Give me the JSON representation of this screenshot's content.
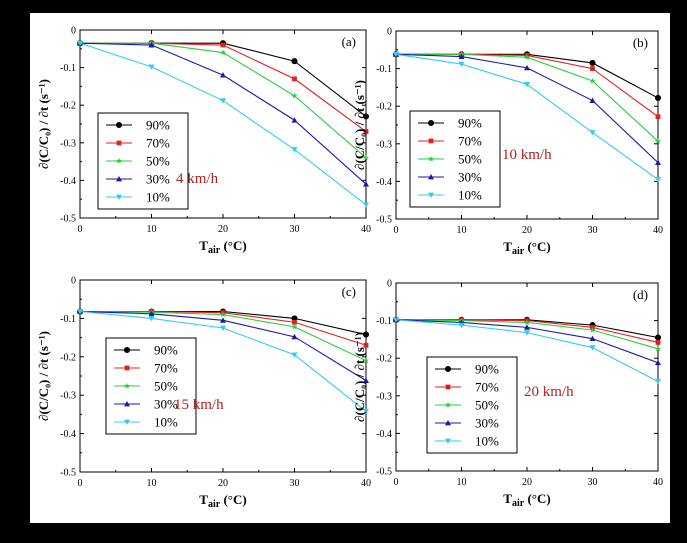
{
  "chart_data": [
    {
      "type": "line",
      "panel_label": "(a)",
      "annotation": "4 km/h",
      "xlabel_main": "T",
      "xlabel_sub": "air",
      "xlabel_unit": "(°C)",
      "ylabel": "∂(C/C₀) / ∂t  (s⁻¹)",
      "x": [
        0,
        10,
        20,
        30,
        40
      ],
      "xticks": [
        "0",
        "10",
        "20",
        "30",
        "40"
      ],
      "yticks": [
        "0",
        "-0.1",
        "-0.2",
        "-0.3",
        "-0.4",
        "-0.5"
      ],
      "xlim": [
        0,
        40
      ],
      "ylim": [
        -0.5,
        0
      ],
      "legend_position": "center-left",
      "series": [
        {
          "name": "90%",
          "color": "#000000",
          "marker": "circle",
          "values": [
            -0.035,
            -0.035,
            -0.035,
            -0.083,
            -0.23
          ]
        },
        {
          "name": "70%",
          "color": "#e02020",
          "marker": "square",
          "values": [
            -0.035,
            -0.035,
            -0.04,
            -0.13,
            -0.27
          ]
        },
        {
          "name": "50%",
          "color": "#2ecc40",
          "marker": "star",
          "values": [
            -0.035,
            -0.035,
            -0.06,
            -0.175,
            -0.34
          ]
        },
        {
          "name": "30%",
          "color": "#1a1aaa",
          "marker": "triangle-up",
          "values": [
            -0.035,
            -0.04,
            -0.12,
            -0.24,
            -0.41
          ]
        },
        {
          "name": "10%",
          "color": "#33ccee",
          "marker": "triangle-down",
          "values": [
            -0.035,
            -0.098,
            -0.188,
            -0.318,
            -0.465
          ]
        }
      ]
    },
    {
      "type": "line",
      "panel_label": "(b)",
      "annotation": "10 km/h",
      "xlabel_main": "T",
      "xlabel_sub": "air",
      "xlabel_unit": "(°C)",
      "ylabel": "∂(C/C₀) / ∂t  (s⁻¹)",
      "x": [
        0,
        10,
        20,
        30,
        40
      ],
      "xticks": [
        "0",
        "10",
        "20",
        "30",
        "40"
      ],
      "yticks": [
        "0",
        "-0.1",
        "-0.2",
        "-0.3",
        "-0.4",
        "-0.5"
      ],
      "xlim": [
        0,
        40
      ],
      "ylim": [
        -0.5,
        0
      ],
      "legend_position": "center-left",
      "series": [
        {
          "name": "90%",
          "color": "#000000",
          "marker": "circle",
          "values": [
            -0.062,
            -0.062,
            -0.062,
            -0.085,
            -0.178
          ]
        },
        {
          "name": "70%",
          "color": "#e02020",
          "marker": "square",
          "values": [
            -0.062,
            -0.062,
            -0.065,
            -0.1,
            -0.228
          ]
        },
        {
          "name": "50%",
          "color": "#2ecc40",
          "marker": "star",
          "values": [
            -0.062,
            -0.062,
            -0.07,
            -0.133,
            -0.293
          ]
        },
        {
          "name": "30%",
          "color": "#1a1aaa",
          "marker": "triangle-up",
          "values": [
            -0.062,
            -0.068,
            -0.098,
            -0.185,
            -0.35
          ]
        },
        {
          "name": "10%",
          "color": "#33ccee",
          "marker": "triangle-down",
          "values": [
            -0.062,
            -0.088,
            -0.142,
            -0.27,
            -0.395
          ]
        }
      ]
    },
    {
      "type": "line",
      "panel_label": "(c)",
      "annotation": "15 km/h",
      "xlabel_main": "T",
      "xlabel_sub": "air",
      "xlabel_unit": "(°C)",
      "ylabel": "∂(C/C₀) / ∂t  (s⁻¹)",
      "x": [
        0,
        10,
        20,
        30,
        40
      ],
      "xticks": [
        "0",
        "10",
        "20",
        "30",
        "40"
      ],
      "yticks": [
        "0",
        "-0.1",
        "-0.2",
        "-0.3",
        "-0.4",
        "-0.5"
      ],
      "xlim": [
        0,
        40
      ],
      "ylim": [
        -0.5,
        0
      ],
      "legend_position": "center-left",
      "series": [
        {
          "name": "90%",
          "color": "#000000",
          "marker": "circle",
          "values": [
            -0.082,
            -0.082,
            -0.082,
            -0.1,
            -0.142
          ]
        },
        {
          "name": "70%",
          "color": "#e02020",
          "marker": "square",
          "values": [
            -0.082,
            -0.082,
            -0.085,
            -0.11,
            -0.17
          ]
        },
        {
          "name": "50%",
          "color": "#2ecc40",
          "marker": "star",
          "values": [
            -0.082,
            -0.084,
            -0.09,
            -0.122,
            -0.21
          ]
        },
        {
          "name": "30%",
          "color": "#1a1aaa",
          "marker": "triangle-up",
          "values": [
            -0.082,
            -0.088,
            -0.105,
            -0.148,
            -0.262
          ]
        },
        {
          "name": "10%",
          "color": "#33ccee",
          "marker": "triangle-down",
          "values": [
            -0.082,
            -0.1,
            -0.125,
            -0.195,
            -0.342
          ]
        }
      ]
    },
    {
      "type": "line",
      "panel_label": "(d)",
      "annotation": "20 km/h",
      "xlabel_main": "T",
      "xlabel_sub": "air",
      "xlabel_unit": "(°C)",
      "ylabel": "∂(C/C₀) / ∂t  (s⁻¹)",
      "x": [
        0,
        10,
        20,
        30,
        40
      ],
      "xticks": [
        "0",
        "10",
        "20",
        "30",
        "40"
      ],
      "yticks": [
        "0",
        "-0.1",
        "-0.2",
        "-0.3",
        "-0.4",
        "-0.5"
      ],
      "xlim": [
        0,
        40
      ],
      "ylim": [
        -0.5,
        0
      ],
      "legend_position": "center-left",
      "series": [
        {
          "name": "90%",
          "color": "#000000",
          "marker": "circle",
          "values": [
            -0.098,
            -0.098,
            -0.098,
            -0.112,
            -0.145
          ]
        },
        {
          "name": "70%",
          "color": "#e02020",
          "marker": "square",
          "values": [
            -0.098,
            -0.098,
            -0.1,
            -0.118,
            -0.158
          ]
        },
        {
          "name": "50%",
          "color": "#2ecc40",
          "marker": "star",
          "values": [
            -0.098,
            -0.1,
            -0.105,
            -0.125,
            -0.175
          ]
        },
        {
          "name": "30%",
          "color": "#1a1aaa",
          "marker": "triangle-up",
          "values": [
            -0.098,
            -0.105,
            -0.118,
            -0.148,
            -0.212
          ]
        },
        {
          "name": "10%",
          "color": "#33ccee",
          "marker": "triangle-down",
          "values": [
            -0.098,
            -0.112,
            -0.132,
            -0.172,
            -0.262
          ]
        }
      ]
    }
  ]
}
